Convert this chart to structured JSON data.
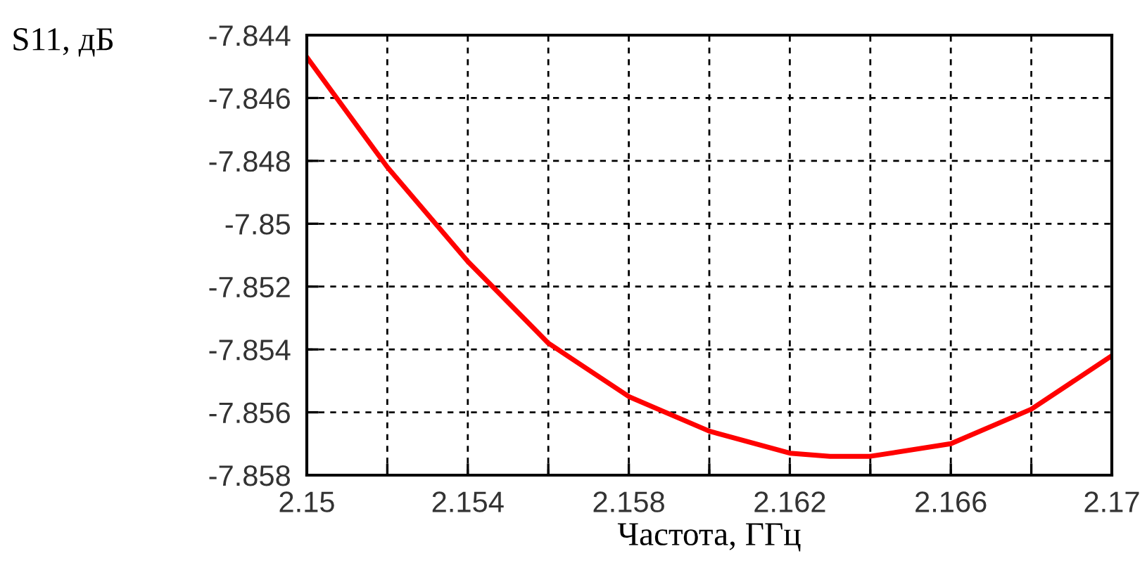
{
  "chart_data": {
    "type": "line",
    "xlabel": "Частота, ГГц",
    "ylabel": "S11, дБ",
    "x": [
      2.15,
      2.152,
      2.154,
      2.156,
      2.158,
      2.16,
      2.162,
      2.163,
      2.164,
      2.166,
      2.168,
      2.17
    ],
    "series": [
      {
        "color": "#ff0000",
        "values": [
          -7.8447,
          -7.8482,
          -7.8512,
          -7.8538,
          -7.8555,
          -7.8566,
          -7.8573,
          -7.8574,
          -7.8574,
          -7.857,
          -7.8559,
          -7.8542
        ]
      }
    ],
    "xlim": [
      2.15,
      2.17
    ],
    "ylim": [
      -7.858,
      -7.844
    ],
    "xticks": [
      2.15,
      {
        "value": 2.152,
        "label": null
      },
      2.154,
      {
        "value": 2.156,
        "label": null
      },
      2.158,
      {
        "value": 2.16,
        "label": null
      },
      2.162,
      {
        "value": 2.164,
        "label": null
      },
      2.166,
      {
        "value": 2.168,
        "label": null
      },
      2.17
    ],
    "yticks": [
      -7.858,
      -7.856,
      -7.854,
      -7.852,
      -7.85,
      -7.848,
      -7.846,
      -7.844
    ],
    "grid": true,
    "line_style": "solid",
    "marker": "none"
  }
}
